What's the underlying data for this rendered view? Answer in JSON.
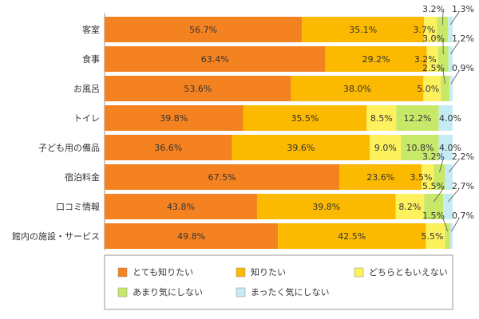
{
  "chart_data": {
    "type": "bar",
    "orientation": "horizontal",
    "stacked": true,
    "normalized_percent": true,
    "categories": [
      "客室",
      "食事",
      "お風呂",
      "トイレ",
      "子ども用の備品",
      "宿泊料金",
      "口コミ情報",
      "館内の施設・サービス"
    ],
    "series": [
      {
        "name": "とても知りたい",
        "color": "#f58220",
        "values": [
          56.7,
          63.4,
          53.6,
          39.8,
          36.6,
          67.5,
          43.8,
          49.8
        ],
        "labels": [
          "56.7%",
          "63.4%",
          "53.6%",
          "39.8%",
          "36.6%",
          "67.5%",
          "43.8%",
          "49.8%"
        ]
      },
      {
        "name": "知りたい",
        "color": "#fbb900",
        "values": [
          35.1,
          29.2,
          38.0,
          35.5,
          39.6,
          23.6,
          39.8,
          42.5
        ],
        "labels": [
          "35.1%",
          "29.2%",
          "38.0%",
          "35.5%",
          "39.6%",
          "23.6%",
          "39.8%",
          "42.5%"
        ]
      },
      {
        "name": "どちらともいえない",
        "color": "#fdf15e",
        "values": [
          3.7,
          3.2,
          5.0,
          8.5,
          9.0,
          3.5,
          8.2,
          5.5
        ],
        "labels": [
          "3.7%",
          "3.2%",
          "5.0%",
          "8.5%",
          "9.0%",
          "3.5%",
          "8.2%",
          "5.5%"
        ]
      },
      {
        "name": "あまり気にしない",
        "color": "#c8e86a",
        "values": [
          3.2,
          3.0,
          2.5,
          12.2,
          10.8,
          3.2,
          5.5,
          1.5
        ],
        "labels": [
          "3.2%",
          "3.0%",
          "2.5%",
          "12.2%",
          "10.8%",
          "3.2%",
          "5.5%",
          "1.5%"
        ]
      },
      {
        "name": "まったく気にしない",
        "color": "#c5ecf5",
        "values": [
          1.3,
          1.2,
          0.9,
          4.0,
          4.0,
          2.2,
          2.7,
          0.7
        ],
        "labels": [
          "1.3%",
          "1.2%",
          "0.9%",
          "4.0%",
          "4.0%",
          "2.2%",
          "2.7%",
          "0.7%"
        ]
      }
    ],
    "title": "",
    "xlabel": "",
    "ylabel": "",
    "xlim": [
      0,
      100
    ],
    "grid": false,
    "legend": "bottom"
  }
}
